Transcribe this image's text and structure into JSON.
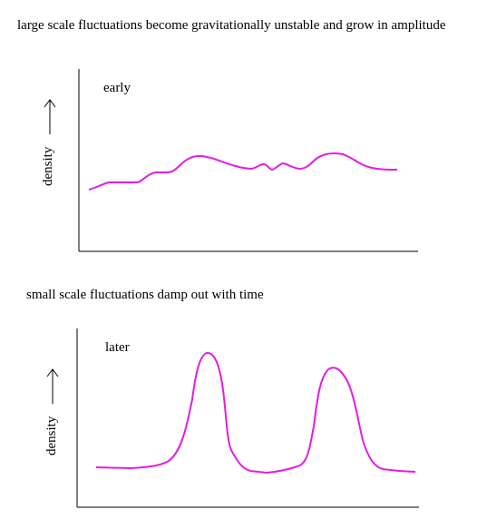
{
  "captions": {
    "top": "large scale fluctuations become gravitationally unstable and grow in amplitude",
    "middle": "small scale fluctuations damp out with time"
  },
  "panels": [
    {
      "label": "early",
      "ylabel": "density",
      "arrow": "up-arrow"
    },
    {
      "label": "later",
      "ylabel": "density",
      "arrow": "up-arrow"
    }
  ],
  "colors": {
    "curve": "#e21ee0",
    "axis": "#000000"
  }
}
